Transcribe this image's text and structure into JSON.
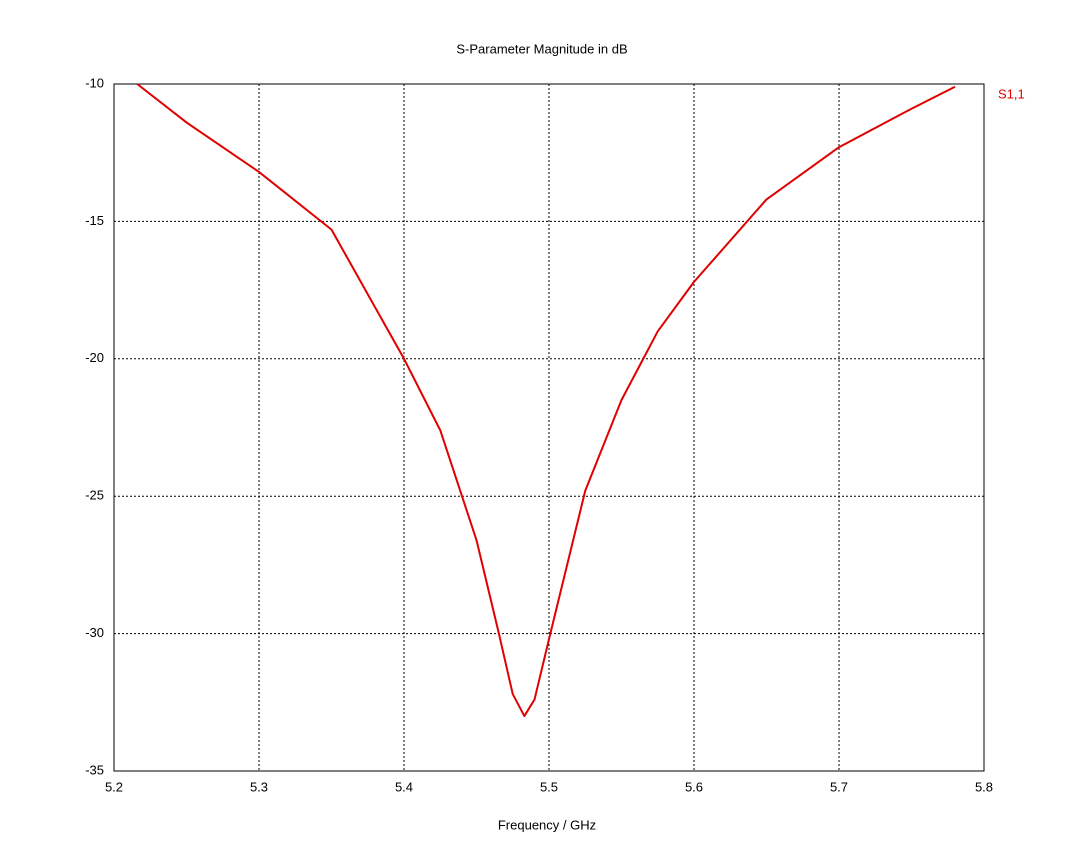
{
  "chart_data": {
    "type": "line",
    "title": "S-Parameter Magnitude in dB",
    "x_label": "Frequency / GHz",
    "xlim": [
      5.2,
      5.8
    ],
    "xticks": [
      5.2,
      5.3,
      5.4,
      5.5,
      5.6,
      5.7,
      5.8
    ],
    "ylim": [
      -35,
      -10
    ],
    "yticks": [
      -35,
      -30,
      -25,
      -20,
      -15,
      -10
    ],
    "grid": true,
    "series": [
      {
        "name": "S1,1",
        "color": "#e00000",
        "x": [
          5.216,
          5.25,
          5.3,
          5.35,
          5.4,
          5.425,
          5.45,
          5.465,
          5.475,
          5.483,
          5.49,
          5.5,
          5.525,
          5.55,
          5.575,
          5.6,
          5.65,
          5.7,
          5.75,
          5.78
        ],
        "values": [
          -10.0,
          -11.4,
          -13.2,
          -15.3,
          -20.0,
          -22.6,
          -26.6,
          -29.9,
          -32.2,
          -33.0,
          -32.4,
          -30.2,
          -24.8,
          -21.5,
          -19.0,
          -17.2,
          -14.2,
          -12.3,
          -10.9,
          -10.1
        ]
      }
    ]
  }
}
